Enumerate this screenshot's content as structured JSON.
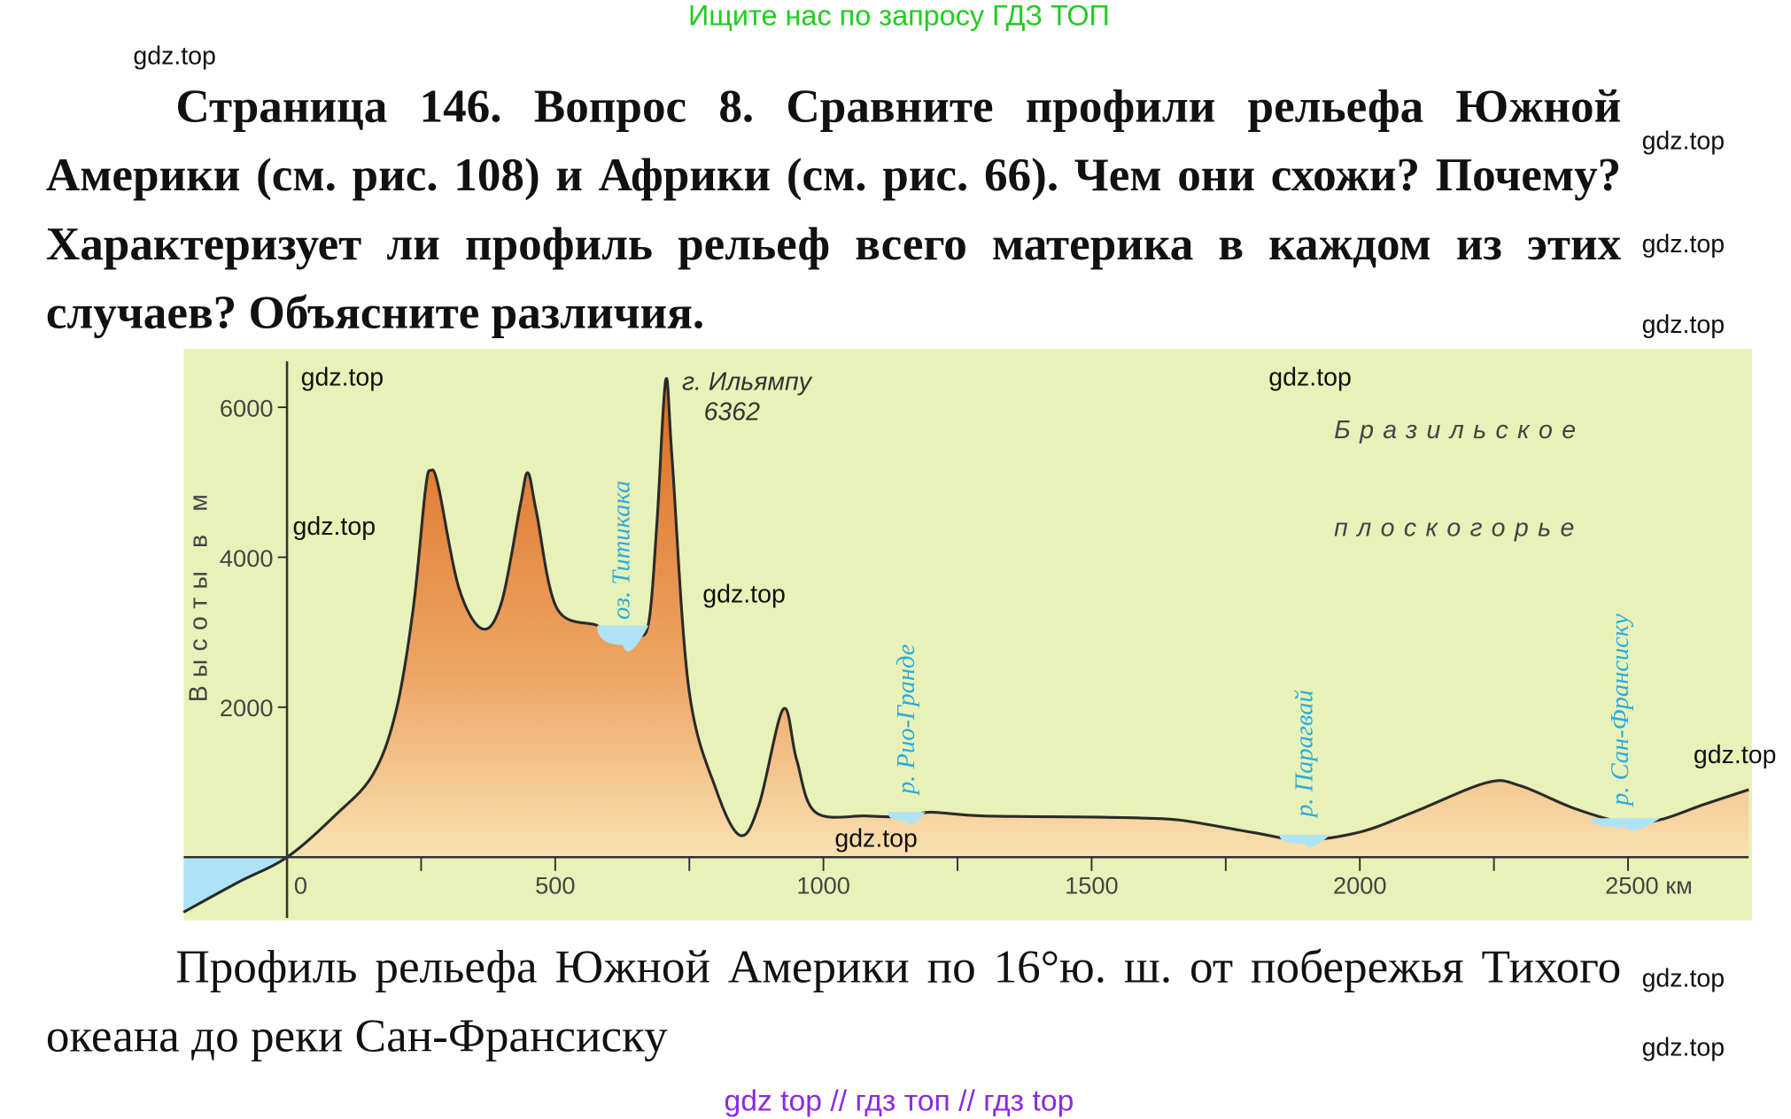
{
  "promo": "Ищите нас по запросу ГДЗ ТОП",
  "watermark": "gdz.top",
  "title": "Страница 146. Вопрос 8. Сравните профили рельефа Южной Америки (см. рис. 108) и Африки (см. рис. 66). Чем они схожи? Почему? Характеризует ли профиль рельеф всего материка в каждом из этих случаев? Объясните различия.",
  "caption": "Профиль рельефа Южной Америки по 16°ю. ш. от побережья Тихого океана до реки Сан-Франсиску",
  "footer": "gdz top  //  гдз топ  //  гдз top",
  "colors": {
    "promo": "#22cc22",
    "footer": "#8a2be2",
    "panel": "#e8f2b8",
    "land_top": "#e07a2c",
    "land_bottom": "#fdf0c4",
    "water": "#aee3f5",
    "water_label": "#2aaae0"
  },
  "chart_data": {
    "type": "area",
    "ylabel": "Высоты в м",
    "x_unit": "км",
    "x_ticks": [
      "0",
      "500",
      "1000",
      "1500",
      "2000",
      "2500 км"
    ],
    "x_tick_values": [
      0,
      500,
      1000,
      1500,
      2000,
      2500
    ],
    "y_ticks": [
      "2000",
      "4000",
      "6000"
    ],
    "y_tick_values": [
      2000,
      4000,
      6000
    ],
    "xlim": [
      -193,
      2725
    ],
    "ylim": [
      -750,
      6600
    ],
    "profile": [
      [
        -193,
        -734
      ],
      [
        -90,
        -330
      ],
      [
        0,
        0
      ],
      [
        90,
        560
      ],
      [
        160,
        1100
      ],
      [
        203,
        1943
      ],
      [
        235,
        3300
      ],
      [
        258,
        4900
      ],
      [
        268,
        5157
      ],
      [
        282,
        4950
      ],
      [
        320,
        3600
      ],
      [
        364,
        3045
      ],
      [
        400,
        3400
      ],
      [
        435,
        4700
      ],
      [
        449,
        5126
      ],
      [
        465,
        4600
      ],
      [
        503,
        3320
      ],
      [
        578,
        3090
      ],
      [
        600,
        2950
      ],
      [
        621,
        2860
      ],
      [
        650,
        2950
      ],
      [
        674,
        3120
      ],
      [
        690,
        4500
      ],
      [
        706,
        6362
      ],
      [
        718,
        5300
      ],
      [
        749,
        2250
      ],
      [
        800,
        900
      ],
      [
        845,
        290
      ],
      [
        880,
        700
      ],
      [
        925,
        1974
      ],
      [
        950,
        1300
      ],
      [
        985,
        600
      ],
      [
        1080,
        550
      ],
      [
        1145,
        535
      ],
      [
        1170,
        540
      ],
      [
        1199,
        600
      ],
      [
        1300,
        550
      ],
      [
        1498,
        535
      ],
      [
        1600,
        520
      ],
      [
        1670,
        490
      ],
      [
        1800,
        330
      ],
      [
        1894,
        230
      ],
      [
        2001,
        337
      ],
      [
        2100,
        600
      ],
      [
        2237,
        995
      ],
      [
        2300,
        950
      ],
      [
        2400,
        650
      ],
      [
        2494,
        460
      ],
      [
        2560,
        500
      ],
      [
        2640,
        700
      ],
      [
        2725,
        900
      ]
    ],
    "water_bodies": [
      {
        "label": "оз. Титикака",
        "x": [
          578,
          674
        ],
        "level": 3090
      },
      {
        "label": "р. Рио-Гранде",
        "x": [
          1120,
          1190
        ],
        "level": 600
      },
      {
        "label": "р. Парагвай",
        "x": [
          1850,
          1945
        ],
        "level": 300
      },
      {
        "label": "р. Сан-Франсиску",
        "x": [
          2430,
          2560
        ],
        "level": 520
      }
    ],
    "annotations": [
      {
        "text": "г. Ильямпу",
        "x": 706,
        "y": 6362
      },
      {
        "text": "6362",
        "x": 706,
        "y": 6362
      },
      {
        "text": "Бразильское",
        "region": "top-right"
      },
      {
        "text": "плоскогорье",
        "region": "top-right"
      }
    ]
  }
}
